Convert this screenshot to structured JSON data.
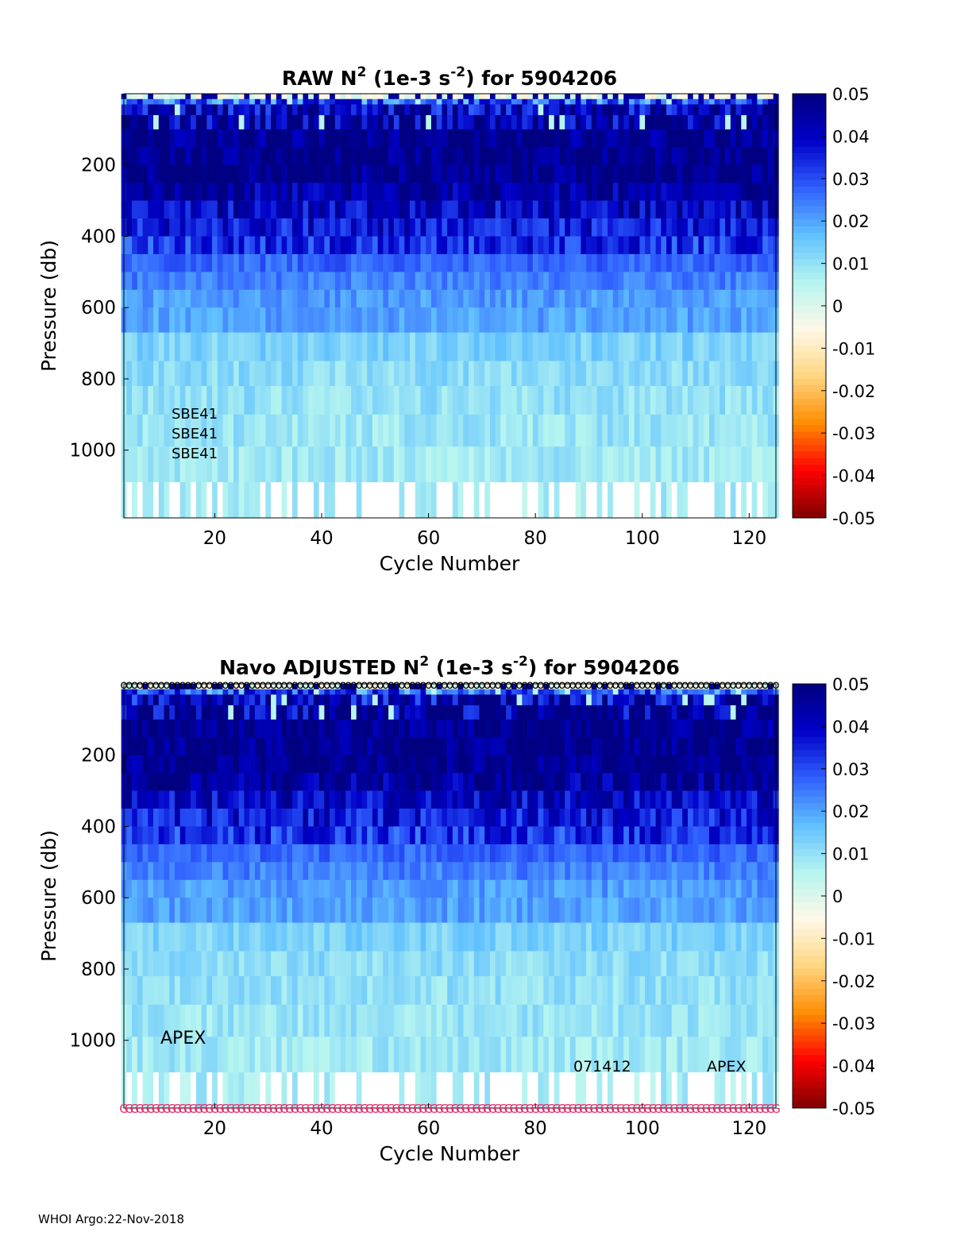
{
  "footer": "WHOI Argo:22-Nov-2018",
  "colors": {
    "colormap": [
      "#7f0000",
      "#ff0000",
      "#ff8c00",
      "#ffd580",
      "#fff8e8",
      "#b5f5f0",
      "#60c0ff",
      "#2f5fff",
      "#0000c8",
      "#000080"
    ],
    "missing": "#ffffff",
    "qc_marker": "#e0306c"
  },
  "chart_data": [
    {
      "type": "heatmap",
      "title": "RAW N² (1e-3 s⁻²) for 5904206",
      "title_parts": {
        "pre": "RAW N",
        "sup1": "2",
        "mid": " (1e-3 s",
        "sup2": "-2",
        "post": ") for 5904206"
      },
      "xlabel": "Cycle Number",
      "ylabel": "Pressure (db)",
      "xlim": [
        3,
        125
      ],
      "ylim": [
        1190,
        0
      ],
      "xticks": [
        "20",
        "40",
        "60",
        "80",
        "100",
        "120"
      ],
      "yticks": [
        "200",
        "400",
        "600",
        "800",
        "1000"
      ],
      "colorbar": {
        "clim": [
          -0.05,
          0.05
        ],
        "ticks": [
          "0.05",
          "0.04",
          "0.03",
          "0.02",
          "0.01",
          "0",
          "-0.01",
          "-0.02",
          "-0.03",
          "-0.04",
          "-0.05"
        ]
      },
      "annotations": [
        "SBE41",
        "SBE41",
        "SBE41"
      ],
      "depth_bins": [
        {
          "top": 0,
          "bottom": 15,
          "mean": -0.002
        },
        {
          "top": 15,
          "bottom": 30,
          "mean": 0.028
        },
        {
          "top": 30,
          "bottom": 60,
          "mean": 0.042
        },
        {
          "top": 60,
          "bottom": 100,
          "mean": 0.046
        },
        {
          "top": 100,
          "bottom": 150,
          "mean": 0.048
        },
        {
          "top": 150,
          "bottom": 200,
          "mean": 0.049
        },
        {
          "top": 200,
          "bottom": 250,
          "mean": 0.049
        },
        {
          "top": 250,
          "bottom": 300,
          "mean": 0.045
        },
        {
          "top": 300,
          "bottom": 350,
          "mean": 0.04
        },
        {
          "top": 350,
          "bottom": 400,
          "mean": 0.037
        },
        {
          "top": 400,
          "bottom": 450,
          "mean": 0.033
        },
        {
          "top": 450,
          "bottom": 500,
          "mean": 0.027
        },
        {
          "top": 500,
          "bottom": 550,
          "mean": 0.024
        },
        {
          "top": 550,
          "bottom": 600,
          "mean": 0.021
        },
        {
          "top": 600,
          "bottom": 670,
          "mean": 0.02
        },
        {
          "top": 670,
          "bottom": 750,
          "mean": 0.013
        },
        {
          "top": 750,
          "bottom": 820,
          "mean": 0.011
        },
        {
          "top": 820,
          "bottom": 900,
          "mean": 0.01
        },
        {
          "top": 900,
          "bottom": 990,
          "mean": 0.009
        },
        {
          "top": 990,
          "bottom": 1090,
          "mean": 0.008
        },
        {
          "top": 1090,
          "bottom": 1190,
          "mean": 0.007
        }
      ],
      "missing_bottom_cycles": [
        4,
        6,
        9,
        12,
        13,
        16,
        19,
        21,
        29,
        31,
        32,
        34,
        36,
        37,
        38,
        40,
        43,
        44,
        45,
        46,
        48,
        49,
        50,
        51,
        52,
        53,
        54,
        56,
        57,
        62,
        63,
        64,
        67,
        68,
        70,
        72,
        73,
        74,
        75,
        76,
        77,
        79,
        80,
        83,
        85,
        86,
        87,
        90,
        91,
        93,
        95,
        96,
        97,
        98,
        100,
        101,
        103,
        106,
        109,
        110,
        111,
        112,
        113,
        116,
        118,
        120,
        122
      ]
    },
    {
      "type": "heatmap",
      "title": "Navo ADJUSTED N² (1e-3 s⁻²) for 5904206",
      "title_parts": {
        "pre": "Navo  ADJUSTED N",
        "sup1": "2",
        "mid": " (1e-3 s",
        "sup2": "-2",
        "post": ") for 5904206"
      },
      "xlabel": "Cycle Number",
      "ylabel": "Pressure (db)",
      "xlim": [
        3,
        125
      ],
      "ylim": [
        1190,
        0
      ],
      "xticks": [
        "20",
        "40",
        "60",
        "80",
        "100",
        "120"
      ],
      "yticks": [
        "200",
        "400",
        "600",
        "800",
        "1000"
      ],
      "colorbar": {
        "clim": [
          -0.05,
          0.05
        ],
        "ticks": [
          "0.05",
          "0.04",
          "0.03",
          "0.02",
          "0.01",
          "0",
          "-0.01",
          "-0.02",
          "-0.03",
          "-0.04",
          "-0.05"
        ]
      },
      "annotations": [
        "APEX",
        "071412",
        "APEX"
      ],
      "top_marker": "o",
      "bottom_marker": "G",
      "depth_bins": [
        {
          "top": 0,
          "bottom": 15,
          "mean": -0.002
        },
        {
          "top": 15,
          "bottom": 30,
          "mean": 0.028
        },
        {
          "top": 30,
          "bottom": 60,
          "mean": 0.042
        },
        {
          "top": 60,
          "bottom": 100,
          "mean": 0.046
        },
        {
          "top": 100,
          "bottom": 150,
          "mean": 0.048
        },
        {
          "top": 150,
          "bottom": 200,
          "mean": 0.049
        },
        {
          "top": 200,
          "bottom": 250,
          "mean": 0.049
        },
        {
          "top": 250,
          "bottom": 300,
          "mean": 0.045
        },
        {
          "top": 300,
          "bottom": 350,
          "mean": 0.04
        },
        {
          "top": 350,
          "bottom": 400,
          "mean": 0.037
        },
        {
          "top": 400,
          "bottom": 450,
          "mean": 0.033
        },
        {
          "top": 450,
          "bottom": 500,
          "mean": 0.027
        },
        {
          "top": 500,
          "bottom": 550,
          "mean": 0.024
        },
        {
          "top": 550,
          "bottom": 600,
          "mean": 0.021
        },
        {
          "top": 600,
          "bottom": 670,
          "mean": 0.02
        },
        {
          "top": 670,
          "bottom": 750,
          "mean": 0.013
        },
        {
          "top": 750,
          "bottom": 820,
          "mean": 0.011
        },
        {
          "top": 820,
          "bottom": 900,
          "mean": 0.01
        },
        {
          "top": 900,
          "bottom": 990,
          "mean": 0.009
        },
        {
          "top": 990,
          "bottom": 1090,
          "mean": 0.008
        },
        {
          "top": 1090,
          "bottom": 1190,
          "mean": 0.007
        }
      ],
      "missing_bottom_cycles": [
        4,
        6,
        9,
        12,
        13,
        16,
        19,
        21,
        29,
        31,
        32,
        34,
        36,
        37,
        38,
        40,
        43,
        44,
        45,
        46,
        48,
        49,
        50,
        51,
        52,
        53,
        54,
        56,
        57,
        62,
        63,
        64,
        67,
        68,
        70,
        72,
        73,
        74,
        75,
        76,
        77,
        79,
        80,
        83,
        85,
        86,
        87,
        90,
        91,
        93,
        95,
        96,
        97,
        98,
        100,
        101,
        103,
        106,
        109,
        110,
        111,
        112,
        113,
        116,
        118,
        120,
        122
      ]
    }
  ]
}
